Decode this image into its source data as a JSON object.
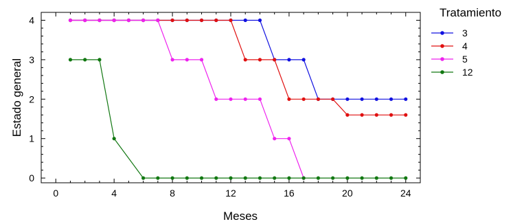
{
  "chart_data": {
    "type": "line",
    "title": "",
    "xlabel": "Meses",
    "ylabel": "Estado general",
    "xlim": [
      -1,
      25
    ],
    "ylim": [
      -0.12,
      4.2
    ],
    "xticks": [
      0,
      4,
      8,
      12,
      16,
      20,
      24
    ],
    "yticks": [
      0,
      1,
      2,
      3,
      4
    ],
    "grid": false,
    "legend": {
      "title": "Tratamiento",
      "position": "right"
    },
    "series": [
      {
        "name": "3",
        "color": "#1010e0",
        "x": [
          1,
          2,
          3,
          4,
          5,
          6,
          7,
          8,
          9,
          10,
          11,
          12,
          13,
          14,
          15,
          16,
          17,
          18,
          19,
          20,
          21,
          22,
          23,
          24
        ],
        "y": [
          4,
          4,
          4,
          4,
          4,
          4,
          4,
          4,
          4,
          4,
          4,
          4,
          4,
          4,
          3,
          3,
          3,
          2,
          2,
          2,
          2,
          2,
          2,
          2
        ]
      },
      {
        "name": "4",
        "color": "#e01010",
        "x": [
          1,
          2,
          3,
          4,
          5,
          6,
          7,
          8,
          9,
          10,
          11,
          12,
          13,
          14,
          15,
          16,
          17,
          18,
          19,
          20,
          21,
          22,
          23,
          24
        ],
        "y": [
          4,
          4,
          4,
          4,
          4,
          4,
          4,
          4,
          4,
          4,
          4,
          4,
          3,
          3,
          3,
          2,
          2,
          2,
          2,
          1.6,
          1.6,
          1.6,
          1.6,
          1.6
        ]
      },
      {
        "name": "5",
        "color": "#ee22ee",
        "x": [
          1,
          2,
          3,
          4,
          5,
          6,
          7,
          8,
          9,
          10,
          11,
          12,
          13,
          14,
          15,
          16,
          17
        ],
        "y": [
          4,
          4,
          4,
          4,
          4,
          4,
          4,
          3,
          3,
          3,
          2,
          2,
          2,
          2,
          1,
          1,
          0
        ]
      },
      {
        "name": "12",
        "color": "#117711",
        "x": [
          1,
          2,
          3,
          4,
          6,
          7,
          8,
          9,
          10,
          11,
          12,
          13,
          14,
          15,
          16,
          17,
          18,
          19,
          20,
          21,
          22,
          23,
          24
        ],
        "y": [
          3,
          3,
          3,
          1,
          0,
          0,
          0,
          0,
          0,
          0,
          0,
          0,
          0,
          0,
          0,
          0,
          0,
          0,
          0,
          0,
          0,
          0,
          0
        ]
      }
    ]
  }
}
